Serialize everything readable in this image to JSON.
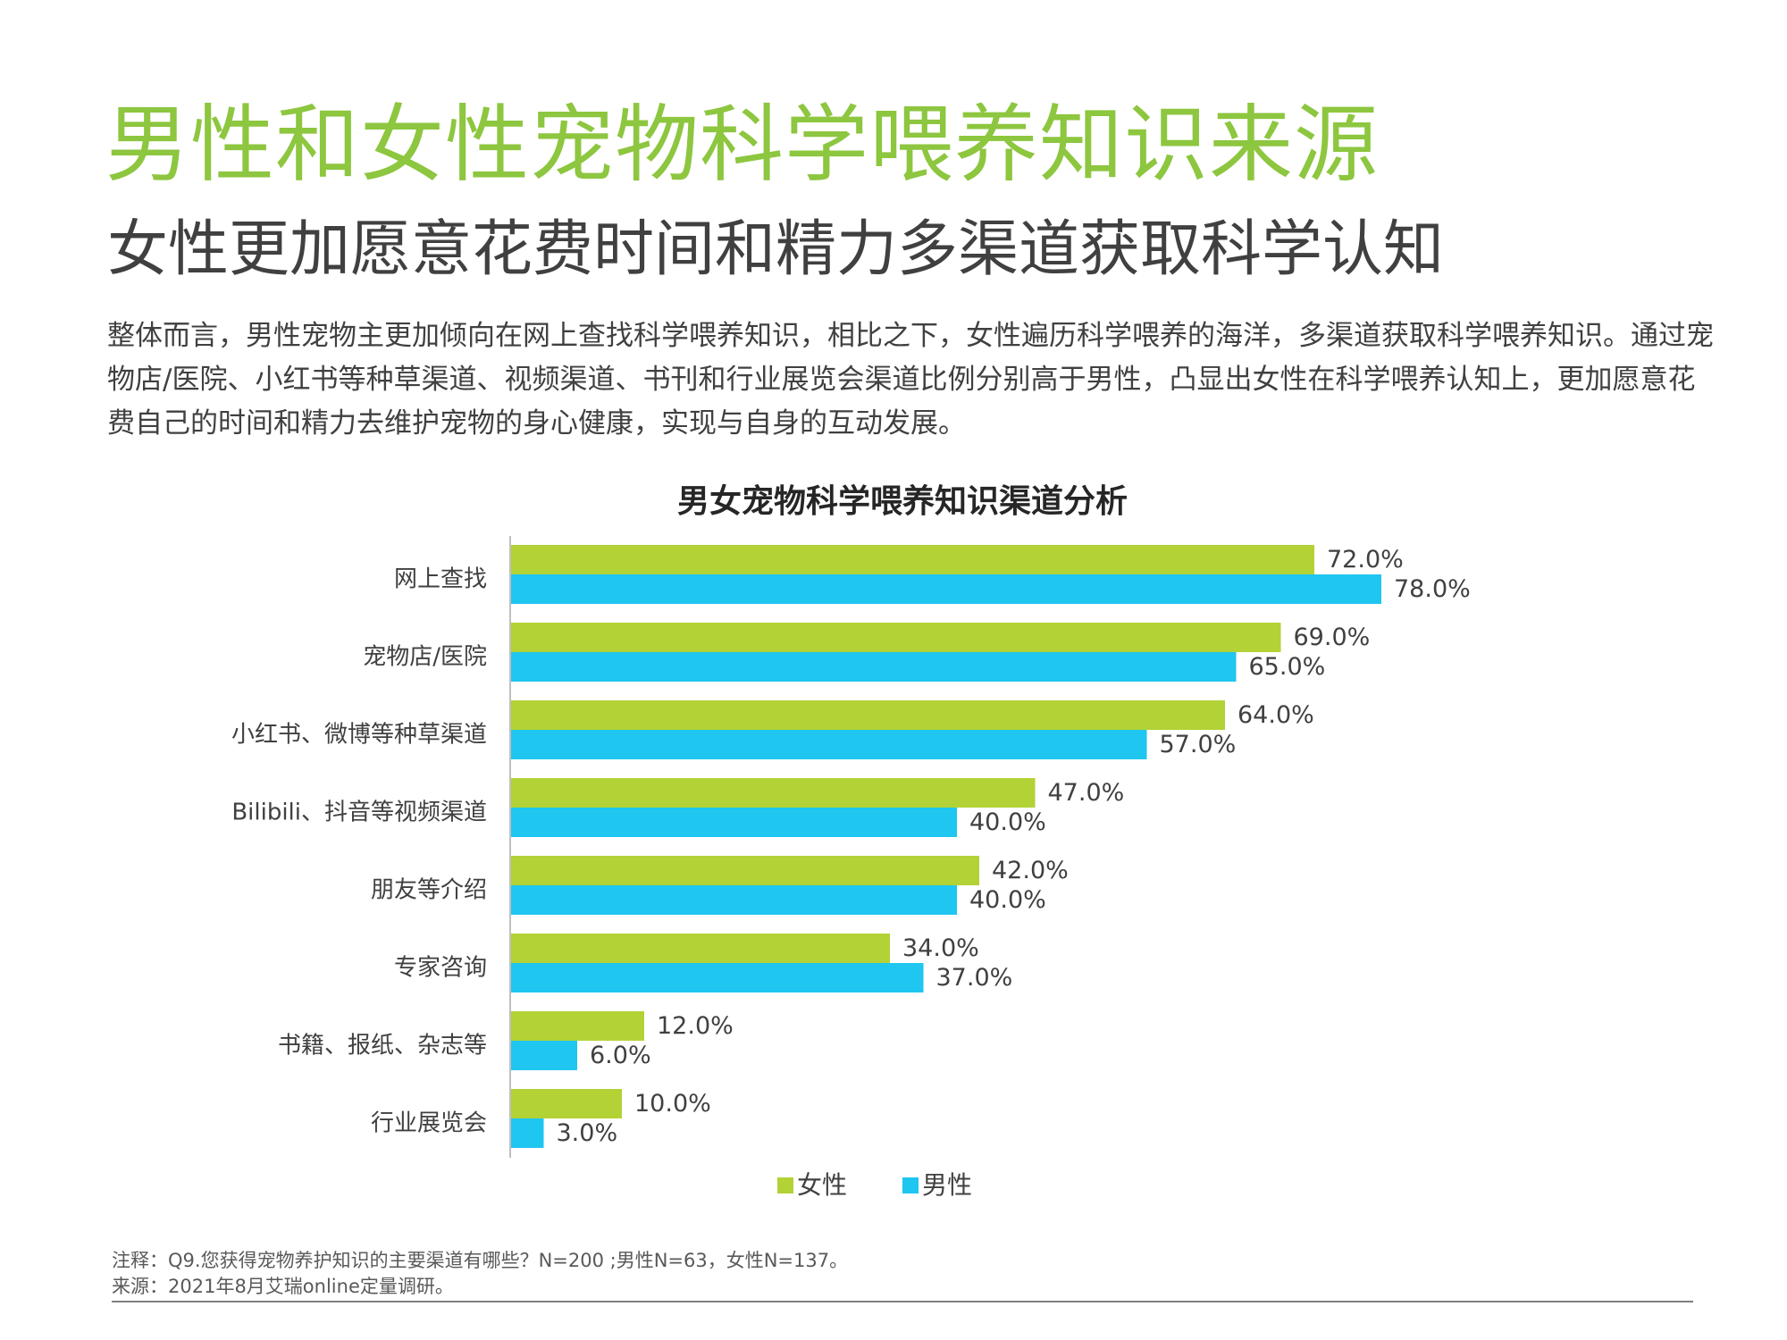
{
  "header": {
    "title": "男性和女性宠物科学喂养知识来源",
    "subtitle": "女性更加愿意花费时间和精力多渠道获取科学认知",
    "paragraph": "整体而言，男性宠物主更加倾向在网上查找科学喂养知识，相比之下，女性遍历科学喂养的海洋，多渠道获取科学喂养知识。通过宠物店/医院、小红书等种草渠道、视频渠道、书刊和行业展览会渠道比例分别高于男性，凸显出女性在科学喂养认知上，更加愿意花费自己的时间和精力去维护宠物的身心健康，实现与自身的互动发展。"
  },
  "chart_data": {
    "type": "bar",
    "orientation": "horizontal",
    "title": "男女宠物科学喂养知识渠道分析",
    "categories": [
      "网上查找",
      "宠物店/医院",
      "小红书、微博等种草渠道",
      "Bilibili、抖音等视频渠道",
      "朋友等介绍",
      "专家咨询",
      "书籍、报纸、杂志等",
      "行业展览会"
    ],
    "series": [
      {
        "name": "女性",
        "color": "#B2D235",
        "values": [
          72.0,
          69.0,
          64.0,
          47.0,
          42.0,
          34.0,
          12.0,
          10.0
        ],
        "labels": [
          "72.0%",
          "69.0%",
          "64.0%",
          "47.0%",
          "42.0%",
          "34.0%",
          "12.0%",
          "10.0%"
        ]
      },
      {
        "name": "男性",
        "color": "#1EC6F0",
        "values": [
          78.0,
          65.0,
          57.0,
          40.0,
          40.0,
          37.0,
          6.0,
          3.0
        ],
        "labels": [
          "78.0%",
          "65.0%",
          "57.0%",
          "40.0%",
          "40.0%",
          "37.0%",
          "6.0%",
          "3.0%"
        ]
      }
    ],
    "unit": "%",
    "xlim": [
      0,
      100
    ],
    "grid": false,
    "legend_position": "bottom"
  },
  "footer": {
    "note": "注释：Q9.您获得宠物养护知识的主要渠道有哪些？N=200 ;男性N=63，女性N=137。",
    "source": "来源：2021年8月艾瑞online定量调研。"
  }
}
